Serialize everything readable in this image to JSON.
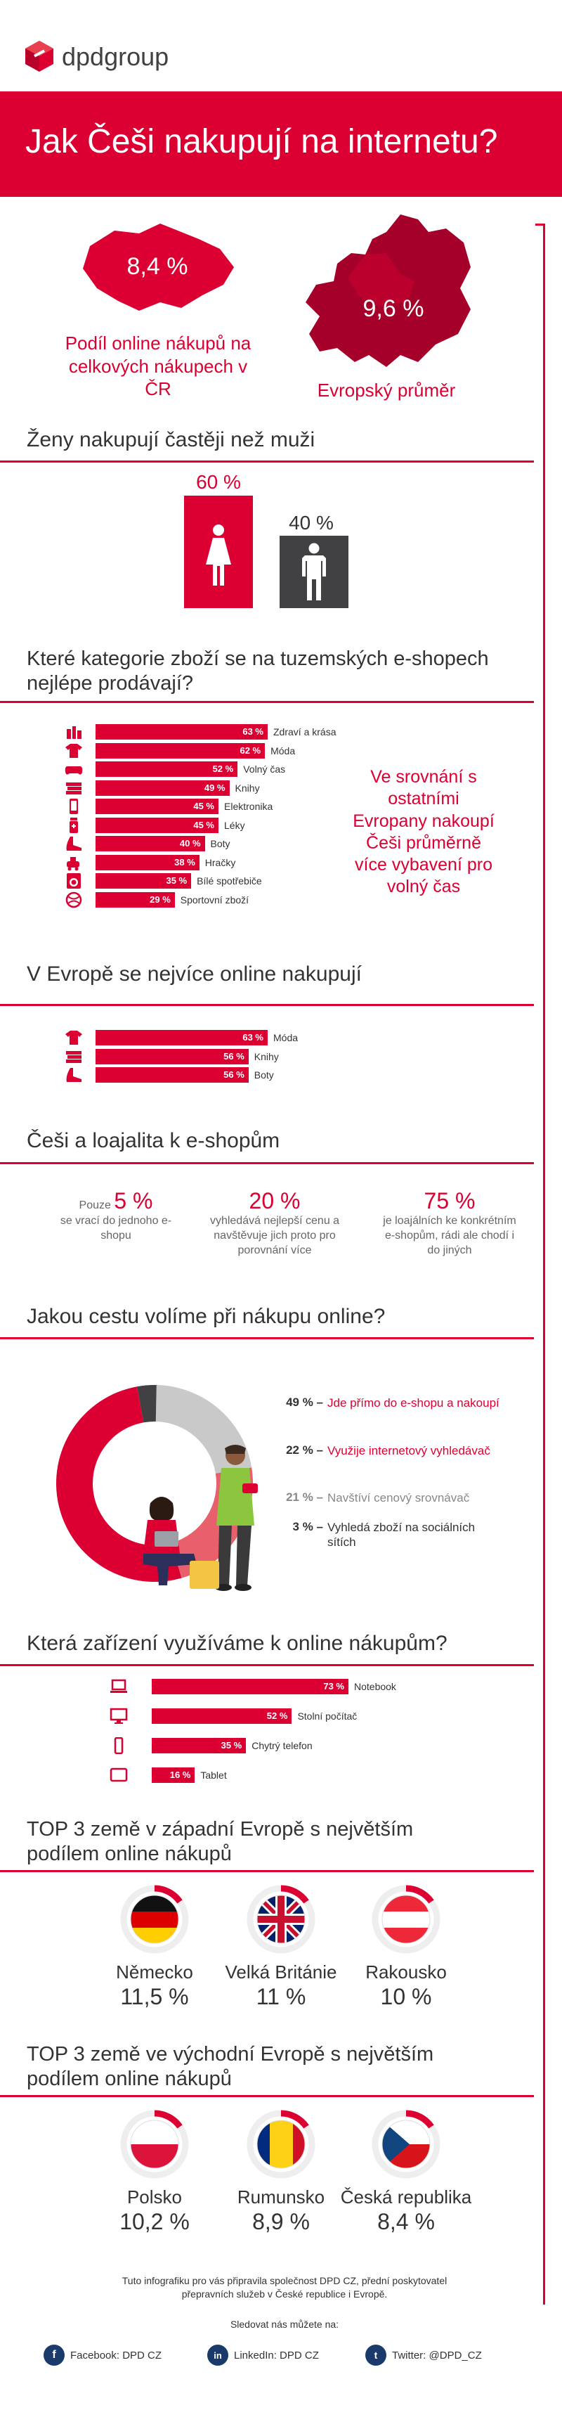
{
  "header": {
    "logo_text": "dpdgroup",
    "title": "Jak Češi nakupují na internetu?",
    "colors": {
      "brand_red": "#dc0032",
      "dark_gray": "#414042"
    }
  },
  "share": {
    "cz_value": "8,4 %",
    "cz_caption": "Podíl online nákupů na celkových nákupech v ČR",
    "eu_value": "9,6 %",
    "eu_caption": "Evropský průměr"
  },
  "gender": {
    "title": "Ženy nakupují častěji než muži",
    "women_value": "60 %",
    "men_value": "40 %"
  },
  "categories_cz": {
    "title": "Které kategorie zboží se na tuzemských e-shopech nejlépe prodávají?",
    "side_note": "Ve srovnání s ostatními Evropany nakoupí Češi průměrně více vybavení pro volný čas"
  },
  "categories_eu": {
    "title": "V Evropě se nejvíce online nakupují"
  },
  "loyalty": {
    "title": "Češi a loajalita k e-shopům",
    "items": [
      {
        "prefix": "Pouze",
        "value": "5 %",
        "text": "se vrací do jednoho e-shopu"
      },
      {
        "prefix": "",
        "value": "20 %",
        "text": "vyhledává nejlepší cenu a navštěvuje jich proto pro porovnání více"
      },
      {
        "prefix": "",
        "value": "75 %",
        "text": "je loajálních ke konkrétním e-shopům, rádi ale chodí i do jiných"
      }
    ]
  },
  "journey": {
    "title": "Jakou cestu volíme při nákupu online?"
  },
  "devices": {
    "title": "Která zařízení využíváme k online nákupům?"
  },
  "west": {
    "title": "TOP 3 země v západní Evropě s největším podílem online nákupů",
    "countries": [
      {
        "name": "Německo",
        "value": "11,5 %",
        "flag": "de-flag-icon"
      },
      {
        "name": "Velká Británie",
        "value": "11 %",
        "flag": "uk-flag-icon"
      },
      {
        "name": "Rakousko",
        "value": "10 %",
        "flag": "at-flag-icon"
      }
    ]
  },
  "east": {
    "title": "TOP 3 země ve východní Evropě s největším podílem online nákupů",
    "countries": [
      {
        "name": "Polsko",
        "value": "10,2 %",
        "flag": "pl-flag-icon"
      },
      {
        "name": "Rumunsko",
        "value": "8,9 %",
        "flag": "ro-flag-icon"
      },
      {
        "name": "Česká republika",
        "value": "8,4 %",
        "flag": "cz-flag-icon"
      }
    ]
  },
  "footer": {
    "credit": "Tuto infografiku pro vás připravila společnost DPD CZ, přední poskytovatel přepravních služeb v České republice i Evropě.",
    "follow": "Sledovat nás můžete na:",
    "facebook": "Facebook: DPD CZ",
    "linkedin": "LinkedIn: DPD CZ",
    "twitter": "Twitter: @DPD_CZ"
  },
  "chart_data": [
    {
      "type": "bar",
      "categories": [
        "Zdraví a krása",
        "Móda",
        "Volný čas",
        "Knihy",
        "Elektronika",
        "Léky",
        "Boty",
        "Hračky",
        "Bílé spotřebiče",
        "Sportovní zboží"
      ],
      "values": [
        63,
        62,
        52,
        49,
        45,
        45,
        40,
        38,
        35,
        29
      ],
      "labels": [
        "63 %",
        "62 %",
        "52 %",
        "49 %",
        "45 %",
        "45 %",
        "40 %",
        "38 %",
        "35 %",
        "29 %"
      ],
      "icons": [
        "cosmetics-icon",
        "shirt-icon",
        "gamepad-icon",
        "books-icon",
        "phone-icon",
        "pills-icon",
        "shoe-icon",
        "toy-icon",
        "washer-icon",
        "ball-icon"
      ]
    },
    {
      "type": "bar",
      "categories": [
        "Móda",
        "Knihy",
        "Boty"
      ],
      "values": [
        63,
        56,
        56
      ],
      "labels": [
        "63 %",
        "56 %",
        "56 %"
      ],
      "icons": [
        "shirt-icon",
        "books-icon",
        "shoe-icon"
      ]
    },
    {
      "type": "pie",
      "categories": [
        "Jde přímo do e-shopu a nakoupí",
        "Využije internetový vyhledávač",
        "Navštíví cenový srovnávač",
        "Vyhledá zboží na sociálních sítích"
      ],
      "values": [
        49,
        22,
        21,
        3
      ],
      "labels": [
        "49 %",
        "22 %",
        "21 %",
        "3 %"
      ],
      "colors": [
        "#dc0032",
        "#e8606c",
        "#c9c9c9",
        "#414042"
      ]
    },
    {
      "type": "bar",
      "categories": [
        "Notebook",
        "Stolní počítač",
        "Chytrý telefon",
        "Tablet"
      ],
      "values": [
        73,
        52,
        35,
        16
      ],
      "labels": [
        "73 %",
        "52 %",
        "35 %",
        "16 %"
      ],
      "icons": [
        "laptop-icon",
        "desktop-icon",
        "smartphone-icon",
        "tablet-icon"
      ]
    }
  ]
}
